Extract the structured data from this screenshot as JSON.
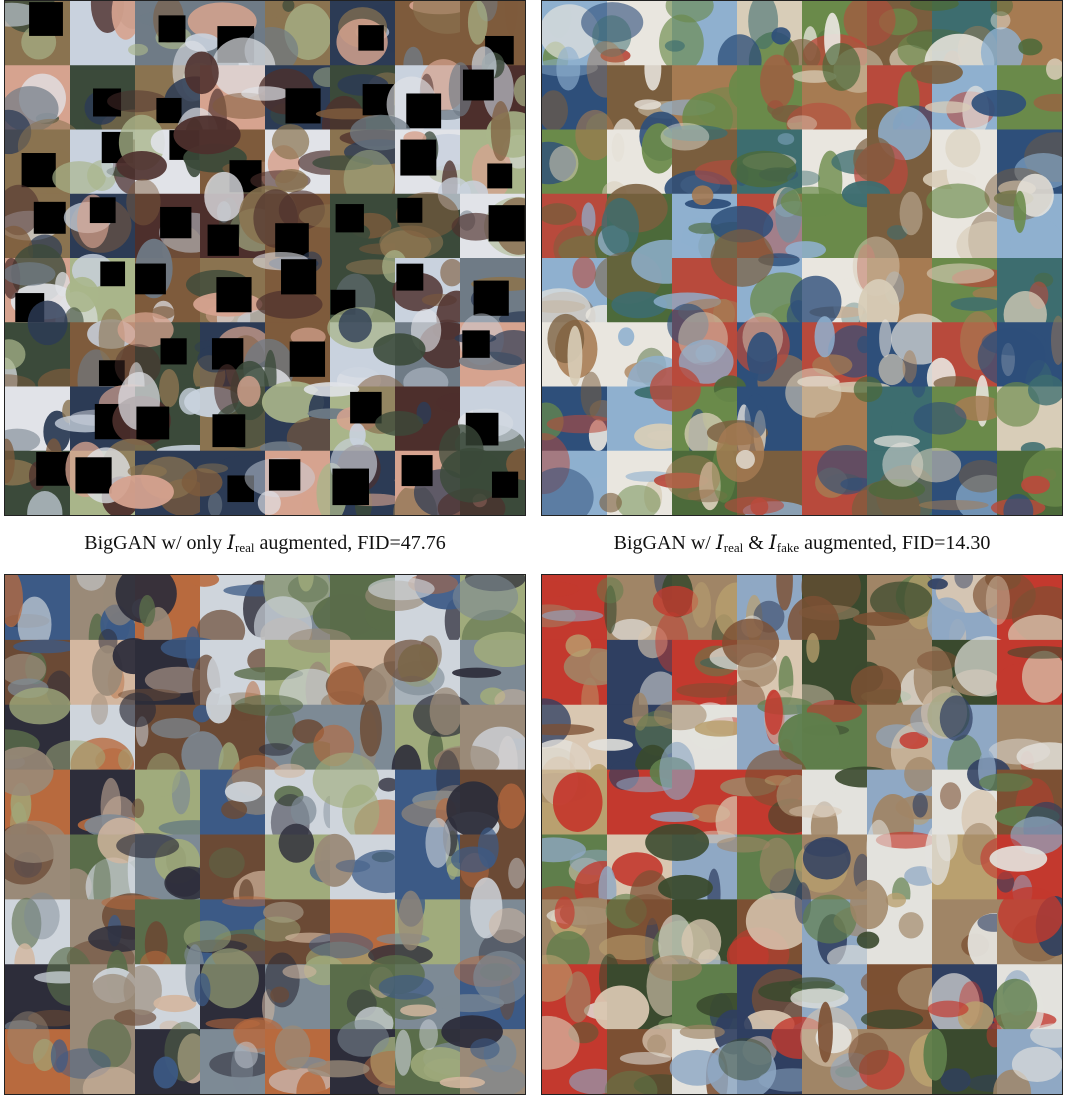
{
  "panels": [
    {
      "id": "top-left",
      "caption": "",
      "artifact": "cutout",
      "seed": 11,
      "palette": [
        "#3b4a3a",
        "#6f7b86",
        "#8a7350",
        "#c9d2de",
        "#2c3b55",
        "#7e5b3c",
        "#a9b58a",
        "#d6a38f",
        "#4d2f2c",
        "#e1e3e8"
      ]
    },
    {
      "id": "top-right",
      "caption": "",
      "artifact": "none",
      "seed": 23,
      "palette": [
        "#6a8a4a",
        "#a67b52",
        "#8fb0cf",
        "#4c6a3a",
        "#d8cdb8",
        "#2e4f7a",
        "#b84a3c",
        "#e9e6df",
        "#7a5e3e",
        "#3d6d6f"
      ]
    },
    {
      "id": "bottom-left",
      "caption_parts": {
        "prefix": "BigGAN w/ only ",
        "symbol": "I",
        "sub": "real",
        "suffix": " augmented, FID=47.76"
      },
      "artifact": "none",
      "seed": 37,
      "palette": [
        "#5a6d4a",
        "#9a8a78",
        "#3c5a86",
        "#b86a3e",
        "#cfd5dc",
        "#6b4a35",
        "#a0ab7c",
        "#2d2d3a",
        "#d3b7a0",
        "#7d8a95"
      ]
    },
    {
      "id": "bottom-right",
      "caption_parts": {
        "prefix": "BigGAN w/ ",
        "symbol": "I",
        "sub": "real",
        "mid": " & ",
        "symbol2": "I",
        "sub2": "fake",
        "suffix": " augmented, FID=14.30"
      },
      "artifact": "none",
      "seed": 53,
      "palette": [
        "#5f7e4b",
        "#a08566",
        "#c3392e",
        "#8fa8c4",
        "#e3e2dd",
        "#3a4a2e",
        "#b9a06f",
        "#2f3f61",
        "#7c5033",
        "#d9c7b1"
      ]
    }
  ],
  "grid": {
    "rows": 8,
    "cols": 8
  }
}
